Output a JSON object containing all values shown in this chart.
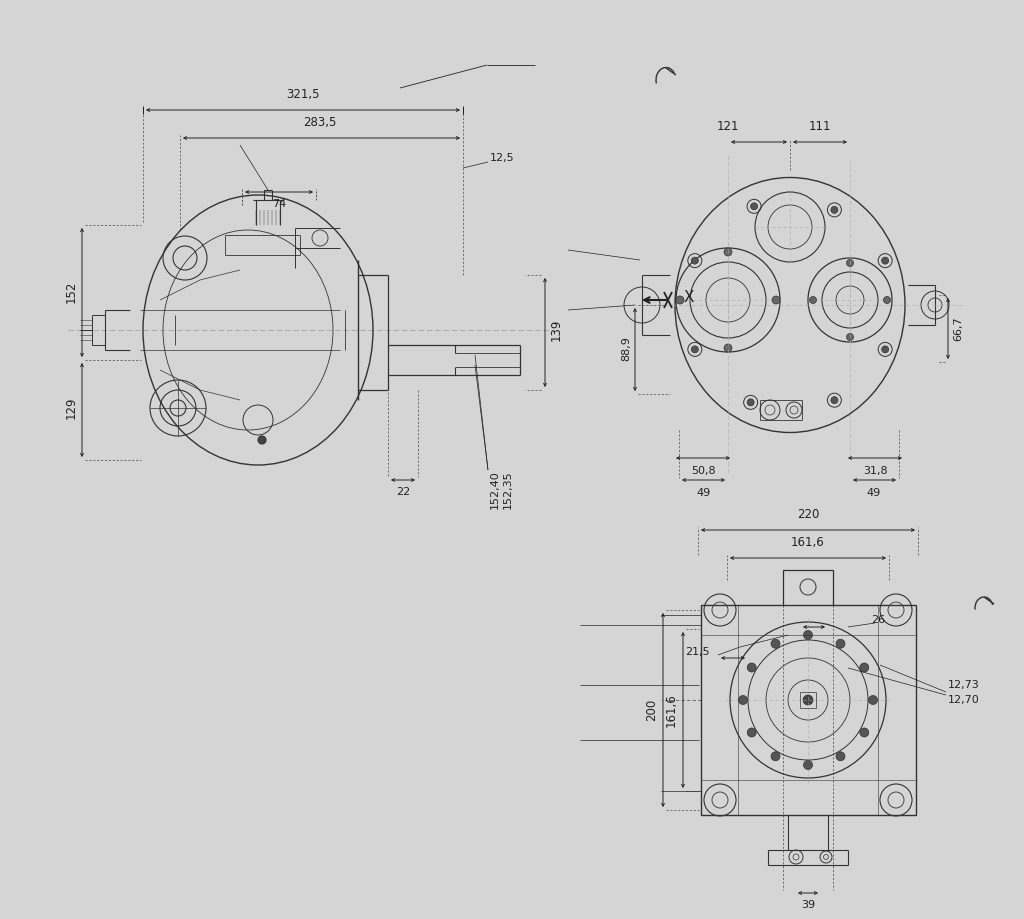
{
  "bg_color": "#d5d5d5",
  "lc": "#333333",
  "dc": "#222222",
  "fig_width": 10.24,
  "fig_height": 9.19,
  "dims_top": {
    "321_5": "321,5",
    "283_5": "283,5",
    "12_5": "12,5",
    "74": "74",
    "152": "152",
    "129": "129",
    "139": "139",
    "22": "22",
    "152_40": "152,40",
    "152_35": "152,35"
  },
  "dims_rt": {
    "121": "121",
    "111": "111",
    "88_9": "88,9",
    "66_7": "66,7",
    "50_8": "50,8",
    "31_8": "31,8",
    "49a": "49",
    "49b": "49"
  },
  "dims_rb": {
    "220": "220",
    "161_6a": "161,6",
    "26": "26",
    "21_5": "21,5",
    "12_73": "12,73",
    "12_70": "12,70",
    "200": "200",
    "161_6b": "161,6",
    "39": "39"
  }
}
